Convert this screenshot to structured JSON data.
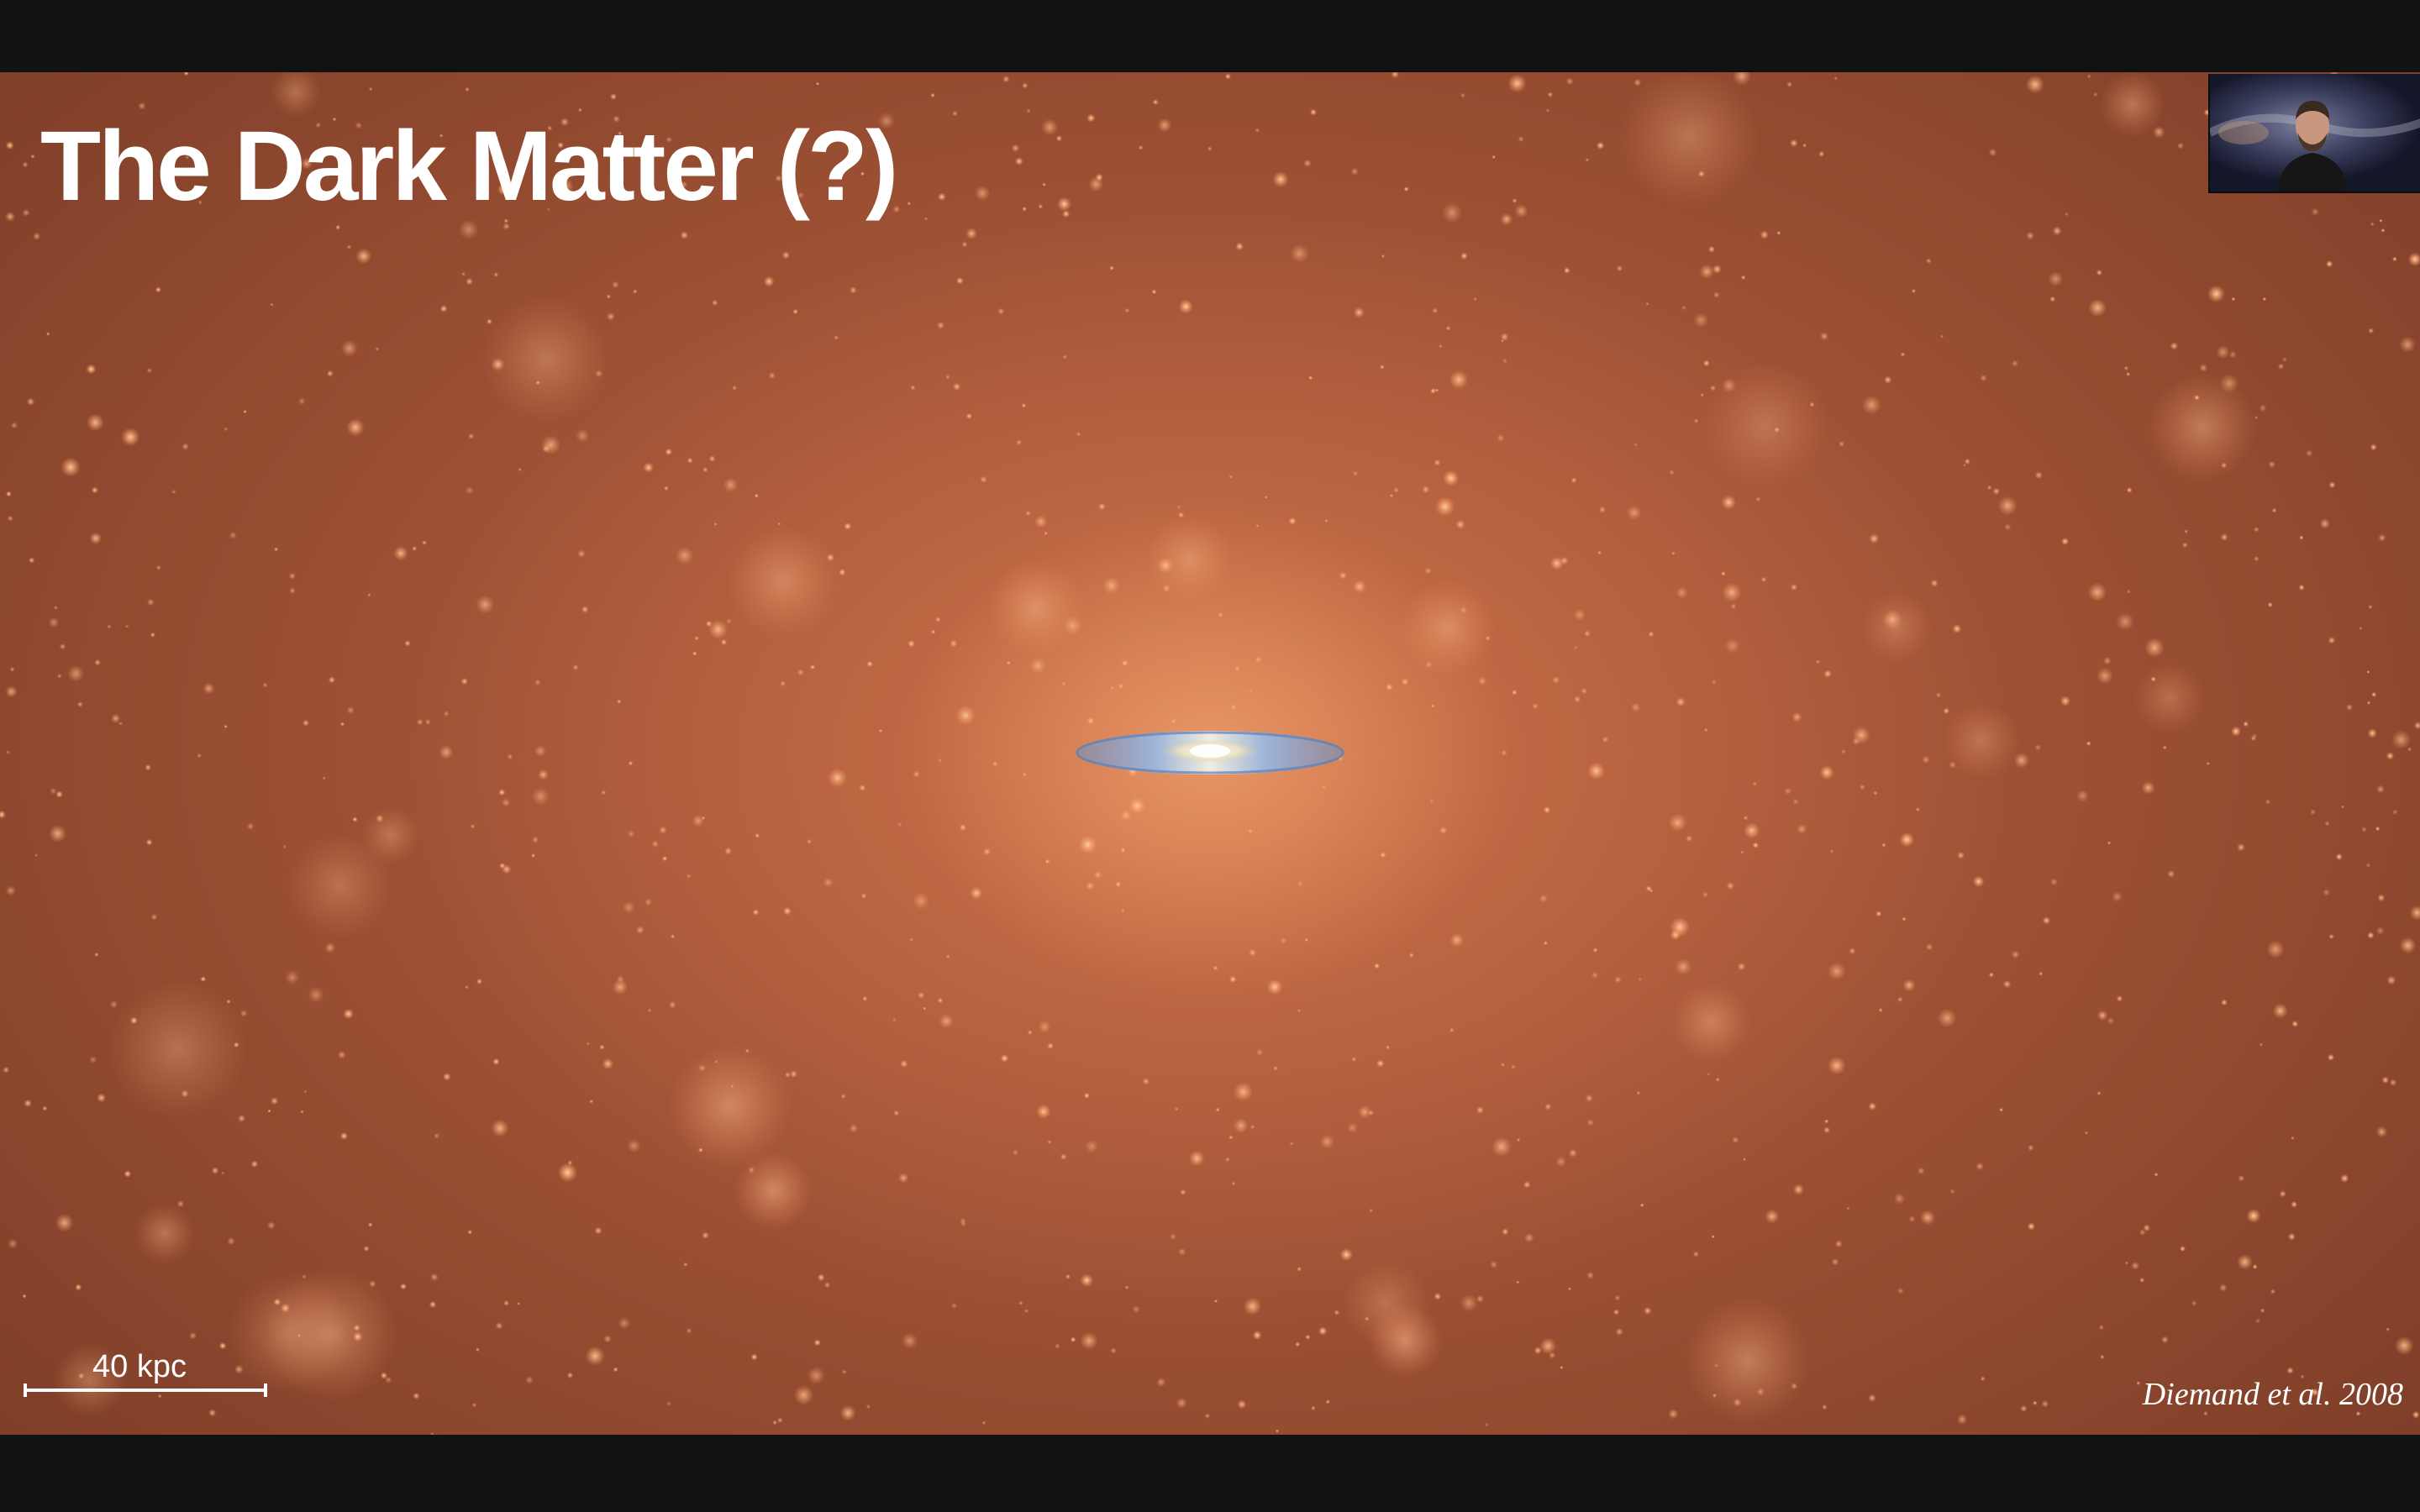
{
  "slide": {
    "title": "The Dark Matter (?)",
    "scale_bar_label": "40 kpc",
    "citation": "Diemand et al. 2008"
  },
  "colors": {
    "letterbox": "#121212",
    "halo_center": "#e8956a",
    "halo_edge": "#7c3d28",
    "subhalo_glow": "#ffb888",
    "galaxy_disk": "#8fb0d8",
    "text": "#ffffff"
  },
  "webcam": {
    "icon": "presenter-video-thumbnail"
  }
}
